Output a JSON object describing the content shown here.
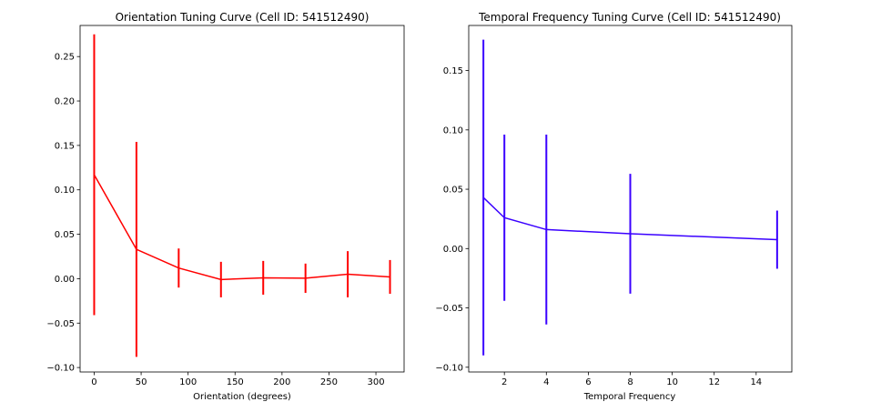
{
  "figure": {
    "background": "#ffffff"
  },
  "chart_data": [
    {
      "type": "line",
      "title": "Orientation Tuning Curve (Cell ID: 541512490)",
      "xlabel": "Orientation (degrees)",
      "ylabel": "",
      "color": "#ff0000",
      "errorbars": true,
      "xlim": [
        -15,
        330
      ],
      "ylim": [
        -0.105,
        0.285
      ],
      "xticks": [
        0,
        50,
        100,
        150,
        200,
        250,
        300
      ],
      "xtick_labels": [
        "0",
        "50",
        "100",
        "150",
        "200",
        "250",
        "300"
      ],
      "yticks": [
        -0.1,
        -0.05,
        0.0,
        0.05,
        0.1,
        0.15,
        0.2,
        0.25
      ],
      "ytick_labels": [
        "−0.10",
        "−0.05",
        "0.00",
        "0.05",
        "0.10",
        "0.15",
        "0.20",
        "0.25"
      ],
      "grid": false,
      "x": [
        0,
        45,
        90,
        135,
        180,
        225,
        270,
        315
      ],
      "y": [
        0.117,
        0.033,
        0.012,
        -0.001,
        0.001,
        0.0005,
        0.005,
        0.002
      ],
      "yerr": [
        0.158,
        0.121,
        0.022,
        0.02,
        0.019,
        0.0165,
        0.026,
        0.019
      ]
    },
    {
      "type": "line",
      "title": "Temporal Frequency Tuning Curve (Cell ID: 541512490)",
      "xlabel": "Temporal Frequency",
      "ylabel": "",
      "color": "#3a00ff",
      "errorbars": true,
      "xlim": [
        0.3,
        15.7
      ],
      "ylim": [
        -0.104,
        0.188
      ],
      "xticks": [
        2,
        4,
        6,
        8,
        10,
        12,
        14
      ],
      "xtick_labels": [
        "2",
        "4",
        "6",
        "8",
        "10",
        "12",
        "14"
      ],
      "yticks": [
        -0.1,
        -0.05,
        0.0,
        0.05,
        0.1,
        0.15
      ],
      "ytick_labels": [
        "−0.10",
        "−0.05",
        "0.00",
        "0.05",
        "0.10",
        "0.15"
      ],
      "grid": false,
      "x": [
        1,
        2,
        4,
        8,
        15
      ],
      "y": [
        0.043,
        0.026,
        0.016,
        0.0125,
        0.0075
      ],
      "yerr": [
        0.133,
        0.07,
        0.08,
        0.0505,
        0.0245
      ]
    }
  ]
}
